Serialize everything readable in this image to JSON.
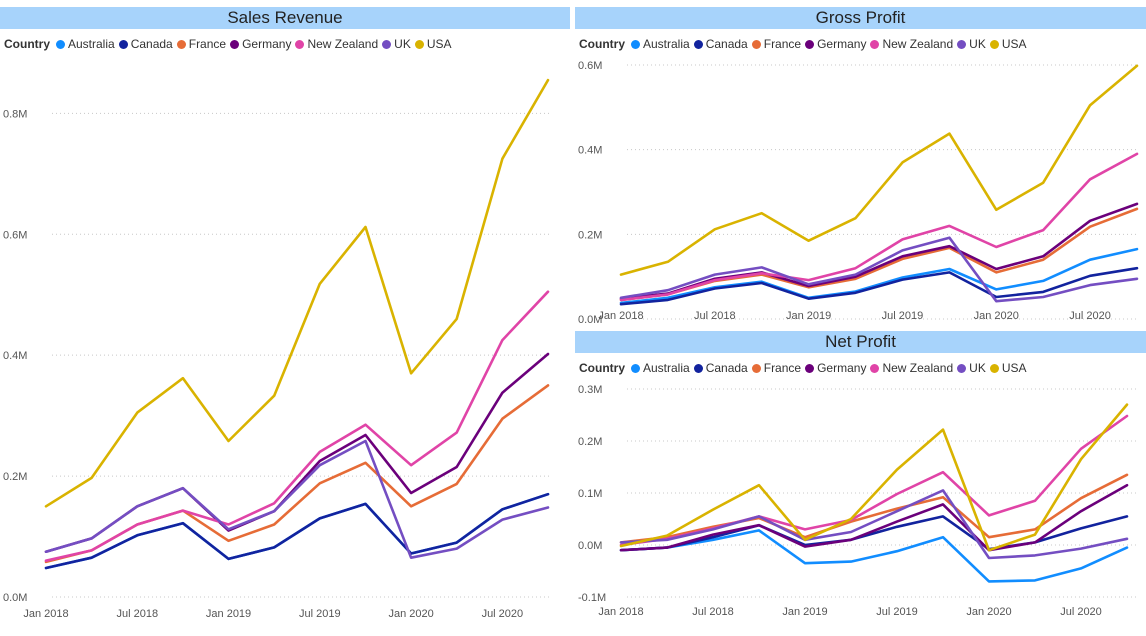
{
  "legend_title": "Country",
  "chart_data": [
    {
      "type": "line",
      "title": "Sales Revenue",
      "legend_title": "Country",
      "x_tick_labels": [
        "Jan 2018",
        "Jul 2018",
        "Jan 2019",
        "Jul 2019",
        "Jan 2020",
        "Jul 2020"
      ],
      "x": [
        "2018-01",
        "2018-04",
        "2018-07",
        "2018-10",
        "2019-01",
        "2019-04",
        "2019-07",
        "2019-10",
        "2020-01",
        "2020-04",
        "2020-07",
        "2020-10"
      ],
      "y_ticks": [
        0,
        0.2,
        0.4,
        0.6,
        0.8
      ],
      "y_tick_labels": [
        "0.0M",
        "0.2M",
        "0.4M",
        "0.6M",
        "0.8M"
      ],
      "ylim": [
        0,
        0.88
      ],
      "grid": true,
      "series": [
        {
          "name": "Australia",
          "color": "#118dff",
          "values": [
            0.048,
            0.065,
            0.102,
            0.122,
            0.063,
            0.082,
            0.13,
            0.154,
            0.072,
            0.09,
            0.145,
            0.17
          ]
        },
        {
          "name": "Canada",
          "color": "#12239e",
          "values": [
            0.048,
            0.065,
            0.102,
            0.122,
            0.063,
            0.082,
            0.13,
            0.154,
            0.072,
            0.09,
            0.145,
            0.17
          ]
        },
        {
          "name": "France",
          "color": "#e66c37",
          "values": [
            0.058,
            0.077,
            0.12,
            0.143,
            0.093,
            0.12,
            0.188,
            0.222,
            0.15,
            0.187,
            0.295,
            0.35
          ]
        },
        {
          "name": "Germany",
          "color": "#6b007b",
          "values": [
            0.075,
            0.097,
            0.15,
            0.18,
            0.11,
            0.142,
            0.225,
            0.268,
            0.172,
            0.215,
            0.338,
            0.402
          ]
        },
        {
          "name": "New Zealand",
          "color": "#e044a7",
          "values": [
            0.06,
            0.077,
            0.12,
            0.143,
            0.12,
            0.155,
            0.24,
            0.285,
            0.218,
            0.272,
            0.425,
            0.505
          ]
        },
        {
          "name": "UK",
          "color": "#744ec2",
          "values": [
            0.075,
            0.097,
            0.15,
            0.18,
            0.112,
            0.142,
            0.218,
            0.258,
            0.065,
            0.08,
            0.128,
            0.148
          ]
        },
        {
          "name": "USA",
          "color": "#d9b300",
          "values": [
            0.15,
            0.197,
            0.305,
            0.362,
            0.258,
            0.333,
            0.518,
            0.612,
            0.37,
            0.46,
            0.725,
            0.855
          ]
        }
      ]
    },
    {
      "type": "line",
      "title": "Gross Profit",
      "legend_title": "Country",
      "x_tick_labels": [
        "Jan 2018",
        "Jul 2018",
        "Jan 2019",
        "Jul 2019",
        "Jan 2020",
        "Jul 2020"
      ],
      "x": [
        "2018-01",
        "2018-04",
        "2018-07",
        "2018-10",
        "2019-01",
        "2019-04",
        "2019-07",
        "2019-10",
        "2020-01",
        "2020-04",
        "2020-07",
        "2020-10"
      ],
      "y_ticks": [
        0,
        0.2,
        0.4,
        0.6
      ],
      "y_tick_labels": [
        "0.0M",
        "0.2M",
        "0.4M",
        "0.6M"
      ],
      "ylim": [
        0,
        0.6
      ],
      "grid": true,
      "series": [
        {
          "name": "Australia",
          "color": "#118dff",
          "values": [
            0.038,
            0.05,
            0.075,
            0.088,
            0.05,
            0.065,
            0.098,
            0.118,
            0.07,
            0.09,
            0.14,
            0.165
          ]
        },
        {
          "name": "Canada",
          "color": "#12239e",
          "values": [
            0.035,
            0.045,
            0.072,
            0.085,
            0.048,
            0.062,
            0.093,
            0.11,
            0.052,
            0.064,
            0.102,
            0.12
          ]
        },
        {
          "name": "France",
          "color": "#e66c37",
          "values": [
            0.045,
            0.058,
            0.09,
            0.105,
            0.075,
            0.095,
            0.142,
            0.168,
            0.11,
            0.14,
            0.218,
            0.26
          ]
        },
        {
          "name": "Germany",
          "color": "#6b007b",
          "values": [
            0.048,
            0.06,
            0.095,
            0.11,
            0.078,
            0.1,
            0.148,
            0.172,
            0.118,
            0.148,
            0.232,
            0.272
          ]
        },
        {
          "name": "New Zealand",
          "color": "#e044a7",
          "values": [
            0.045,
            0.058,
            0.092,
            0.108,
            0.092,
            0.12,
            0.188,
            0.22,
            0.17,
            0.21,
            0.33,
            0.39
          ]
        },
        {
          "name": "UK",
          "color": "#744ec2",
          "values": [
            0.05,
            0.068,
            0.105,
            0.122,
            0.082,
            0.105,
            0.162,
            0.192,
            0.042,
            0.052,
            0.08,
            0.095
          ]
        },
        {
          "name": "USA",
          "color": "#d9b300",
          "values": [
            0.105,
            0.135,
            0.212,
            0.25,
            0.185,
            0.238,
            0.37,
            0.438,
            0.258,
            0.322,
            0.505,
            0.598
          ]
        }
      ]
    },
    {
      "type": "line",
      "title": "Net Profit",
      "legend_title": "Country",
      "x_tick_labels": [
        "Jan 2018",
        "Jul 2018",
        "Jan 2019",
        "Jul 2019",
        "Jan 2020",
        "Jul 2020"
      ],
      "x": [
        "2018-01",
        "2018-04",
        "2018-07",
        "2018-10",
        "2019-01",
        "2019-04",
        "2019-07",
        "2019-10",
        "2020-01",
        "2020-04",
        "2020-07",
        "2020-10"
      ],
      "y_ticks": [
        -0.1,
        0,
        0.1,
        0.2,
        0.3
      ],
      "y_tick_labels": [
        "-0.1M",
        "0.0M",
        "0.1M",
        "0.2M",
        "0.3M"
      ],
      "ylim": [
        -0.1,
        0.3
      ],
      "grid": true,
      "series": [
        {
          "name": "Australia",
          "color": "#118dff",
          "values": [
            -0.01,
            -0.005,
            0.01,
            0.028,
            -0.035,
            -0.032,
            -0.012,
            0.015,
            -0.07,
            -0.068,
            -0.045,
            -0.005
          ]
        },
        {
          "name": "Canada",
          "color": "#12239e",
          "values": [
            -0.01,
            -0.005,
            0.015,
            0.038,
            0.0,
            0.01,
            0.035,
            0.055,
            -0.008,
            0.005,
            0.032,
            0.055
          ]
        },
        {
          "name": "France",
          "color": "#e66c37",
          "values": [
            0.005,
            0.015,
            0.035,
            0.052,
            0.015,
            0.045,
            0.07,
            0.092,
            0.015,
            0.03,
            0.09,
            0.135
          ]
        },
        {
          "name": "Germany",
          "color": "#6b007b",
          "values": [
            -0.01,
            -0.005,
            0.02,
            0.038,
            -0.003,
            0.01,
            0.045,
            0.078,
            -0.01,
            0.005,
            0.065,
            0.115
          ]
        },
        {
          "name": "New Zealand",
          "color": "#e044a7",
          "values": [
            0.0,
            0.012,
            0.032,
            0.055,
            0.03,
            0.048,
            0.098,
            0.14,
            0.057,
            0.085,
            0.185,
            0.248
          ]
        },
        {
          "name": "UK",
          "color": "#744ec2",
          "values": [
            0.005,
            0.01,
            0.03,
            0.055,
            0.01,
            0.025,
            0.065,
            0.105,
            -0.025,
            -0.02,
            -0.007,
            0.012
          ]
        },
        {
          "name": "USA",
          "color": "#d9b300",
          "values": [
            -0.002,
            0.018,
            0.068,
            0.115,
            0.01,
            0.05,
            0.145,
            0.222,
            -0.01,
            0.02,
            0.165,
            0.27
          ]
        }
      ]
    }
  ]
}
